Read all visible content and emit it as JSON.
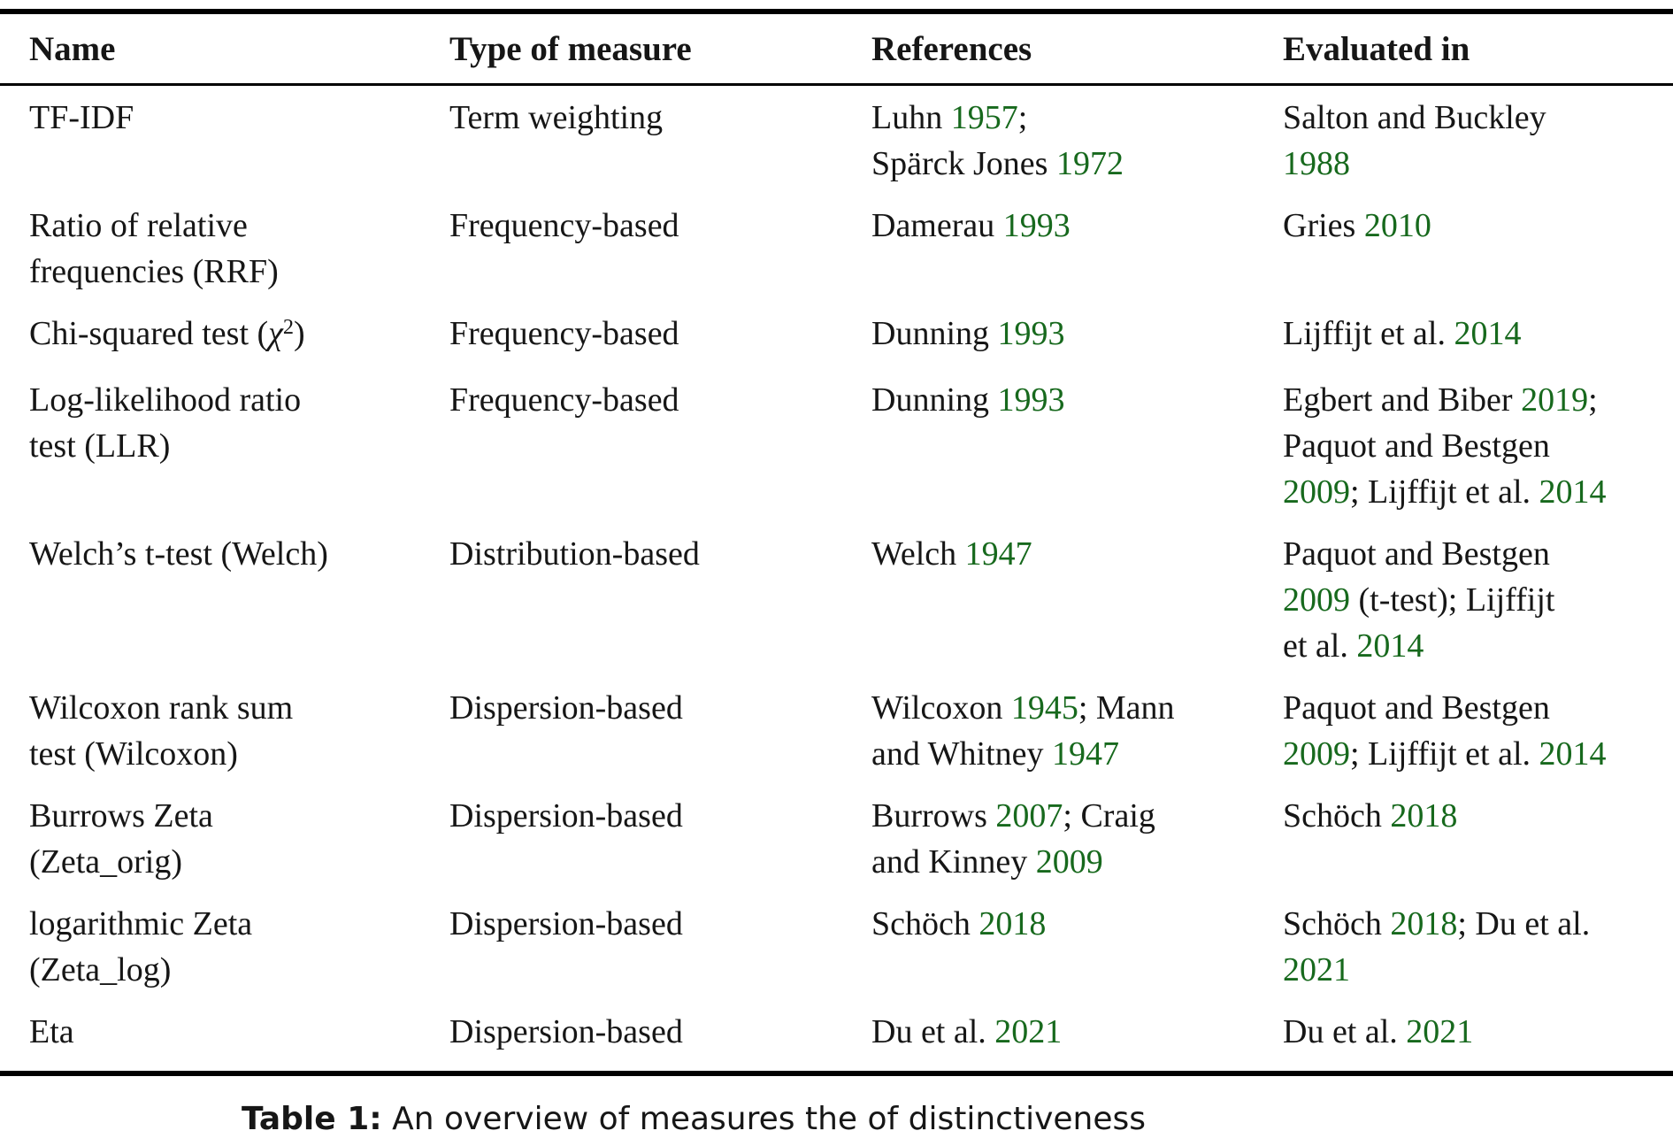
{
  "colors": {
    "background": "#ffffff",
    "text": "#161616",
    "citation_link_green": "#17691d",
    "rule": "#000000"
  },
  "table": {
    "headers": [
      "Name",
      "Type of measure",
      "References",
      "Evaluated in"
    ],
    "rows": [
      {
        "name": "TF-IDF",
        "type": "Term weighting",
        "references": [
          {
            "t": "Luhn "
          },
          {
            "t": "1957",
            "k": "y"
          },
          {
            "t": ";"
          },
          {
            "k": "br"
          },
          {
            "t": "Spärck Jones "
          },
          {
            "t": "1972",
            "k": "y"
          }
        ],
        "evaluated": [
          {
            "t": "Salton and Buckley"
          },
          {
            "k": "br"
          },
          {
            "t": "1988",
            "k": "y"
          }
        ]
      },
      {
        "name": [
          {
            "t": "Ratio of relative"
          },
          {
            "k": "br"
          },
          {
            "t": "frequencies (RRF)"
          }
        ],
        "type": "Frequency-based",
        "references": [
          {
            "t": "Damerau "
          },
          {
            "t": "1993",
            "k": "y"
          }
        ],
        "evaluated": [
          {
            "t": "Gries "
          },
          {
            "t": "2010",
            "k": "y"
          }
        ]
      },
      {
        "name": [
          {
            "t": "Chi-squared test ("
          },
          {
            "t": "χ",
            "k": "i"
          },
          {
            "t": "2",
            "k": "sup"
          },
          {
            "t": ")"
          }
        ],
        "type": "Frequency-based",
        "references": [
          {
            "t": "Dunning "
          },
          {
            "t": "1993",
            "k": "y"
          }
        ],
        "evaluated": [
          {
            "t": "Lijffijt et al. "
          },
          {
            "t": "2014",
            "k": "y"
          }
        ]
      },
      {
        "name": [
          {
            "t": "Log-likelihood ratio"
          },
          {
            "k": "br"
          },
          {
            "t": "test (LLR)"
          }
        ],
        "type": "Frequency-based",
        "references": [
          {
            "t": "Dunning "
          },
          {
            "t": "1993",
            "k": "y"
          }
        ],
        "evaluated": [
          {
            "t": "Egbert and Biber "
          },
          {
            "t": "2019",
            "k": "y"
          },
          {
            "t": ";"
          },
          {
            "k": "br"
          },
          {
            "t": "Paquot and Bestgen"
          },
          {
            "k": "br"
          },
          {
            "t": "2009",
            "k": "y"
          },
          {
            "t": "; Lijffijt et al. "
          },
          {
            "t": "2014",
            "k": "y"
          }
        ]
      },
      {
        "name": "Welch’s t-test (Welch)",
        "type": "Distribution-based",
        "references": [
          {
            "t": "Welch "
          },
          {
            "t": "1947",
            "k": "y"
          }
        ],
        "evaluated": [
          {
            "t": "Paquot and Bestgen"
          },
          {
            "k": "br"
          },
          {
            "t": "2009",
            "k": "y"
          },
          {
            "t": " (t-test); Lijffijt"
          },
          {
            "k": "br"
          },
          {
            "t": "et al. "
          },
          {
            "t": "2014",
            "k": "y"
          }
        ]
      },
      {
        "name": [
          {
            "t": "Wilcoxon rank sum"
          },
          {
            "k": "br"
          },
          {
            "t": "test (Wilcoxon)"
          }
        ],
        "type": "Dispersion-based",
        "references": [
          {
            "t": "Wilcoxon "
          },
          {
            "t": "1945",
            "k": "y"
          },
          {
            "t": "; Mann"
          },
          {
            "k": "br"
          },
          {
            "t": "and Whitney "
          },
          {
            "t": "1947",
            "k": "y"
          }
        ],
        "evaluated": [
          {
            "t": "Paquot and Bestgen"
          },
          {
            "k": "br"
          },
          {
            "t": "2009",
            "k": "y"
          },
          {
            "t": "; Lijffijt et al. "
          },
          {
            "t": "2014",
            "k": "y"
          }
        ]
      },
      {
        "name": [
          {
            "t": "Burrows Zeta"
          },
          {
            "k": "br"
          },
          {
            "t": "(Zeta_orig)"
          }
        ],
        "type": "Dispersion-based",
        "references": [
          {
            "t": "Burrows "
          },
          {
            "t": "2007",
            "k": "y"
          },
          {
            "t": "; Craig"
          },
          {
            "k": "br"
          },
          {
            "t": "and Kinney "
          },
          {
            "t": "2009",
            "k": "y"
          }
        ],
        "evaluated": [
          {
            "t": "Schöch "
          },
          {
            "t": "2018",
            "k": "y"
          }
        ]
      },
      {
        "name": [
          {
            "t": "logarithmic Zeta"
          },
          {
            "k": "br"
          },
          {
            "t": "(Zeta_log)"
          }
        ],
        "type": "Dispersion-based",
        "references": [
          {
            "t": "Schöch "
          },
          {
            "t": "2018",
            "k": "y"
          }
        ],
        "evaluated": [
          {
            "t": "Schöch "
          },
          {
            "t": "2018",
            "k": "y"
          },
          {
            "t": "; Du et al."
          },
          {
            "k": "br"
          },
          {
            "t": "2021",
            "k": "y"
          }
        ]
      },
      {
        "name": "Eta",
        "type": "Dispersion-based",
        "references": [
          {
            "t": "Du et al. "
          },
          {
            "t": "2021",
            "k": "y"
          }
        ],
        "evaluated": [
          {
            "t": "Du et al. "
          },
          {
            "t": "2021",
            "k": "y"
          }
        ]
      }
    ]
  },
  "caption": {
    "segments": [
      {
        "t": "Table 1:",
        "k": "b"
      },
      {
        "t": " An overview of measures the of distinctiveness"
      }
    ]
  }
}
